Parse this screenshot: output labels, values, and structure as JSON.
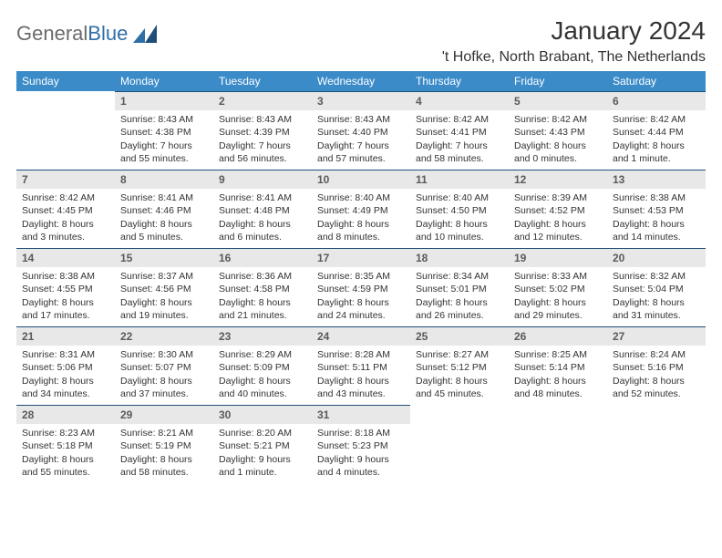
{
  "logo": {
    "text1": "General",
    "text2": "Blue"
  },
  "title": "January 2024",
  "location": "'t Hofke, North Brabant, The Netherlands",
  "colors": {
    "header_bg": "#3b8bc8",
    "header_text": "#ffffff",
    "daynum_bg": "#e8e8e8",
    "daynum_border": "#1f4e79",
    "body_text": "#333333"
  },
  "weekdays": [
    "Sunday",
    "Monday",
    "Tuesday",
    "Wednesday",
    "Thursday",
    "Friday",
    "Saturday"
  ],
  "weeks": [
    [
      {
        "empty": true
      },
      {
        "n": "1",
        "sr": "8:43 AM",
        "ss": "4:38 PM",
        "dl": "7 hours and 55 minutes."
      },
      {
        "n": "2",
        "sr": "8:43 AM",
        "ss": "4:39 PM",
        "dl": "7 hours and 56 minutes."
      },
      {
        "n": "3",
        "sr": "8:43 AM",
        "ss": "4:40 PM",
        "dl": "7 hours and 57 minutes."
      },
      {
        "n": "4",
        "sr": "8:42 AM",
        "ss": "4:41 PM",
        "dl": "7 hours and 58 minutes."
      },
      {
        "n": "5",
        "sr": "8:42 AM",
        "ss": "4:43 PM",
        "dl": "8 hours and 0 minutes."
      },
      {
        "n": "6",
        "sr": "8:42 AM",
        "ss": "4:44 PM",
        "dl": "8 hours and 1 minute."
      }
    ],
    [
      {
        "n": "7",
        "sr": "8:42 AM",
        "ss": "4:45 PM",
        "dl": "8 hours and 3 minutes."
      },
      {
        "n": "8",
        "sr": "8:41 AM",
        "ss": "4:46 PM",
        "dl": "8 hours and 5 minutes."
      },
      {
        "n": "9",
        "sr": "8:41 AM",
        "ss": "4:48 PM",
        "dl": "8 hours and 6 minutes."
      },
      {
        "n": "10",
        "sr": "8:40 AM",
        "ss": "4:49 PM",
        "dl": "8 hours and 8 minutes."
      },
      {
        "n": "11",
        "sr": "8:40 AM",
        "ss": "4:50 PM",
        "dl": "8 hours and 10 minutes."
      },
      {
        "n": "12",
        "sr": "8:39 AM",
        "ss": "4:52 PM",
        "dl": "8 hours and 12 minutes."
      },
      {
        "n": "13",
        "sr": "8:38 AM",
        "ss": "4:53 PM",
        "dl": "8 hours and 14 minutes."
      }
    ],
    [
      {
        "n": "14",
        "sr": "8:38 AM",
        "ss": "4:55 PM",
        "dl": "8 hours and 17 minutes."
      },
      {
        "n": "15",
        "sr": "8:37 AM",
        "ss": "4:56 PM",
        "dl": "8 hours and 19 minutes."
      },
      {
        "n": "16",
        "sr": "8:36 AM",
        "ss": "4:58 PM",
        "dl": "8 hours and 21 minutes."
      },
      {
        "n": "17",
        "sr": "8:35 AM",
        "ss": "4:59 PM",
        "dl": "8 hours and 24 minutes."
      },
      {
        "n": "18",
        "sr": "8:34 AM",
        "ss": "5:01 PM",
        "dl": "8 hours and 26 minutes."
      },
      {
        "n": "19",
        "sr": "8:33 AM",
        "ss": "5:02 PM",
        "dl": "8 hours and 29 minutes."
      },
      {
        "n": "20",
        "sr": "8:32 AM",
        "ss": "5:04 PM",
        "dl": "8 hours and 31 minutes."
      }
    ],
    [
      {
        "n": "21",
        "sr": "8:31 AM",
        "ss": "5:06 PM",
        "dl": "8 hours and 34 minutes."
      },
      {
        "n": "22",
        "sr": "8:30 AM",
        "ss": "5:07 PM",
        "dl": "8 hours and 37 minutes."
      },
      {
        "n": "23",
        "sr": "8:29 AM",
        "ss": "5:09 PM",
        "dl": "8 hours and 40 minutes."
      },
      {
        "n": "24",
        "sr": "8:28 AM",
        "ss": "5:11 PM",
        "dl": "8 hours and 43 minutes."
      },
      {
        "n": "25",
        "sr": "8:27 AM",
        "ss": "5:12 PM",
        "dl": "8 hours and 45 minutes."
      },
      {
        "n": "26",
        "sr": "8:25 AM",
        "ss": "5:14 PM",
        "dl": "8 hours and 48 minutes."
      },
      {
        "n": "27",
        "sr": "8:24 AM",
        "ss": "5:16 PM",
        "dl": "8 hours and 52 minutes."
      }
    ],
    [
      {
        "n": "28",
        "sr": "8:23 AM",
        "ss": "5:18 PM",
        "dl": "8 hours and 55 minutes."
      },
      {
        "n": "29",
        "sr": "8:21 AM",
        "ss": "5:19 PM",
        "dl": "8 hours and 58 minutes."
      },
      {
        "n": "30",
        "sr": "8:20 AM",
        "ss": "5:21 PM",
        "dl": "9 hours and 1 minute."
      },
      {
        "n": "31",
        "sr": "8:18 AM",
        "ss": "5:23 PM",
        "dl": "9 hours and 4 minutes."
      },
      {
        "empty": true
      },
      {
        "empty": true
      },
      {
        "empty": true
      }
    ]
  ],
  "labels": {
    "sunrise": "Sunrise:",
    "sunset": "Sunset:",
    "daylight": "Daylight:"
  }
}
